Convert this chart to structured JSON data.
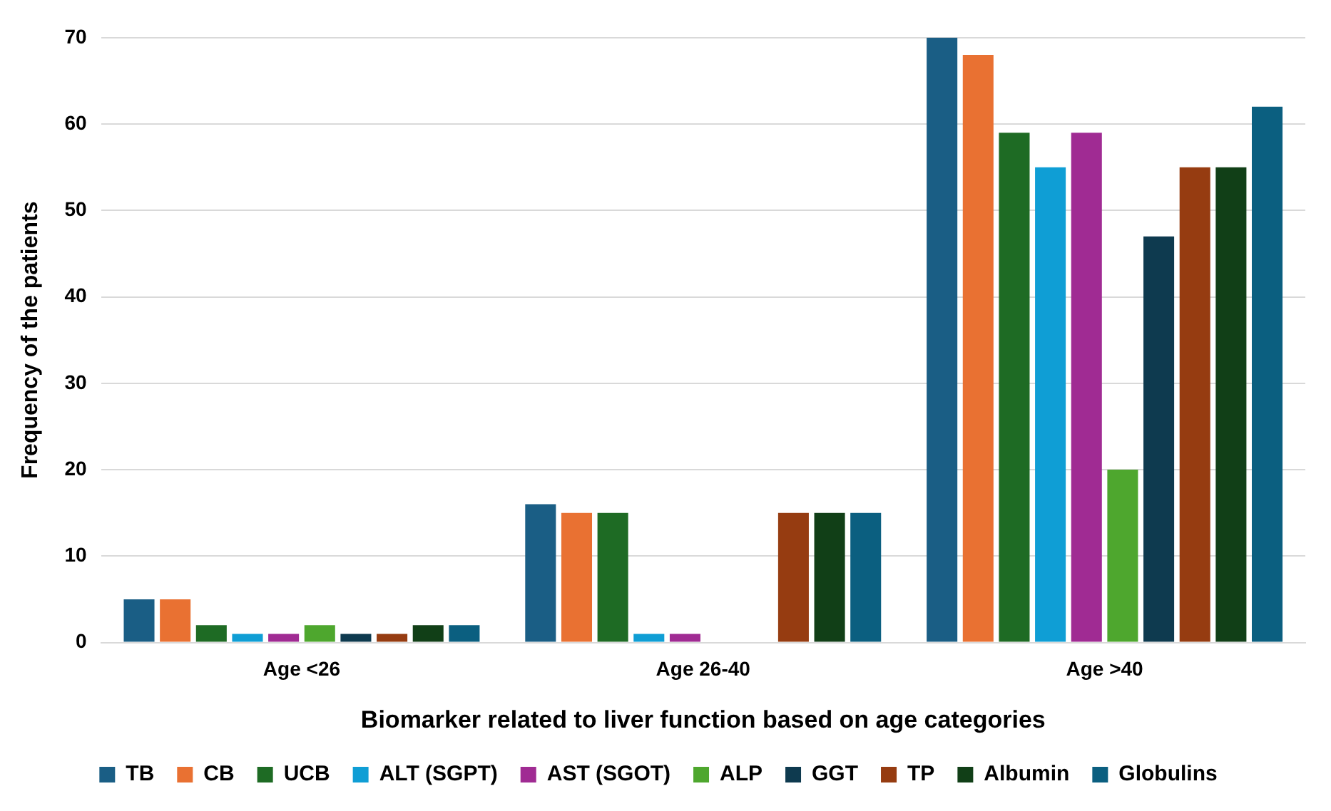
{
  "chart_data": {
    "type": "bar",
    "xlabel": "Biomarker related to liver function based on age categories",
    "ylabel": "Frequency of the patients",
    "categories": [
      "Age <26",
      "Age 26-40",
      "Age >40"
    ],
    "ylim": [
      0,
      70
    ],
    "yticks": [
      0,
      10,
      20,
      30,
      40,
      50,
      60,
      70
    ],
    "grid": "y",
    "legend": "bottom",
    "series": [
      {
        "name": "TB",
        "color": "#1a5e85",
        "values": [
          5,
          16,
          70
        ]
      },
      {
        "name": "CB",
        "color": "#e97132",
        "values": [
          5,
          15,
          68
        ]
      },
      {
        "name": "UCB",
        "color": "#1e6b24",
        "values": [
          2,
          15,
          59
        ]
      },
      {
        "name": "ALT (SGPT)",
        "color": "#0f9ed5",
        "values": [
          1,
          1,
          55
        ]
      },
      {
        "name": "AST (SGOT)",
        "color": "#a02b93",
        "values": [
          1,
          1,
          59
        ]
      },
      {
        "name": "ALP",
        "color": "#4ea72e",
        "values": [
          2,
          0,
          20
        ]
      },
      {
        "name": "GGT",
        "color": "#0e3a4f",
        "values": [
          1,
          0,
          47
        ]
      },
      {
        "name": "TP",
        "color": "#963c11",
        "values": [
          1,
          15,
          55
        ]
      },
      {
        "name": "Albumin",
        "color": "#113f17",
        "values": [
          2,
          15,
          55
        ]
      },
      {
        "name": "Globulins",
        "color": "#0b5f80",
        "values": [
          2,
          15,
          62
        ]
      }
    ]
  }
}
